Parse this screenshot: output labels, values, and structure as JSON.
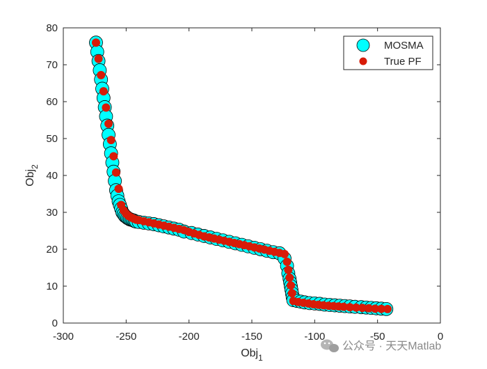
{
  "chart_data": {
    "type": "scatter",
    "xlabel": "Obj",
    "xlabel_sub": "1",
    "ylabel": "Obj",
    "ylabel_sub": "2",
    "xlim": [
      -300,
      0
    ],
    "ylim": [
      0,
      80
    ],
    "xticks": [
      -300,
      -250,
      -200,
      -150,
      -100,
      -50,
      0
    ],
    "yticks": [
      0,
      10,
      20,
      30,
      40,
      50,
      60,
      70,
      80
    ],
    "grid": false,
    "legend_position": "top-right",
    "series": [
      {
        "name": "MOSMA",
        "color": "#00ffff",
        "marker": "circle-large",
        "x": [
          -274,
          -273,
          -272,
          -271,
          -270,
          -269,
          -268,
          -267,
          -266,
          -265,
          -264,
          -263,
          -262,
          -261,
          -260,
          -259,
          -258,
          -257,
          -256,
          -255,
          -254,
          -253,
          -252,
          -251,
          -250,
          -249,
          -248,
          -247,
          -246,
          -245,
          -244,
          -243,
          -242,
          -240,
          -236,
          -232,
          -228,
          -224,
          -220,
          -216,
          -212,
          -208,
          -204,
          -198,
          -193,
          -188,
          -183,
          -178,
          -173,
          -168,
          -163,
          -158,
          -153,
          -148,
          -143,
          -138,
          -133,
          -128,
          -124,
          -122,
          -121,
          -120,
          -119.5,
          -119,
          -118.5,
          -118,
          -117.5,
          -117,
          -114,
          -111,
          -108,
          -104,
          -100,
          -96,
          -92,
          -88,
          -84,
          -80,
          -76,
          -72,
          -68,
          -63,
          -59,
          -55,
          -51,
          -47,
          -43
        ],
        "y": [
          76,
          73.5,
          71,
          68.5,
          66,
          63.5,
          61,
          58.5,
          56,
          53.5,
          51,
          48.5,
          46,
          43.5,
          41,
          38.5,
          36,
          34.5,
          33,
          32,
          31,
          30,
          29.5,
          29,
          28.8,
          28.5,
          28.3,
          28.1,
          28,
          27.9,
          27.8,
          27.6,
          27.5,
          27.4,
          27.2,
          27,
          26.8,
          26.5,
          26.2,
          25.9,
          25.6,
          25.3,
          24.8,
          24.4,
          24,
          23.6,
          23.2,
          22.8,
          22.4,
          22,
          21.6,
          21.2,
          20.8,
          20.4,
          20,
          19.6,
          19.2,
          18.9,
          17.5,
          15.5,
          13.5,
          12,
          11,
          10,
          9,
          8,
          7,
          6.2,
          6,
          5.8,
          5.6,
          5.4,
          5.3,
          5.2,
          5,
          4.9,
          4.8,
          4.7,
          4.6,
          4.5,
          4.4,
          4.3,
          4.2,
          4.1,
          4,
          3.9,
          3.8
        ]
      },
      {
        "name": "True PF",
        "color": "#d81b08",
        "marker": "dot",
        "x": [
          -274,
          -272,
          -270,
          -268,
          -266,
          -264,
          -262,
          -260,
          -258,
          -256,
          -254,
          -252,
          -250,
          -248,
          -246,
          -244,
          -242,
          -240,
          -236,
          -232,
          -228,
          -224,
          -220,
          -216,
          -212,
          -208,
          -204,
          -200,
          -196,
          -192,
          -188,
          -184,
          -180,
          -176,
          -172,
          -168,
          -164,
          -160,
          -156,
          -152,
          -148,
          -144,
          -140,
          -136,
          -132,
          -128,
          -124,
          -122,
          -121,
          -120,
          -119,
          -118,
          -117,
          -113,
          -109,
          -105,
          -101,
          -97,
          -93,
          -89,
          -85,
          -81,
          -77,
          -72,
          -67,
          -62,
          -57,
          -52,
          -47,
          -42
        ],
        "y": [
          76,
          71.6,
          67.2,
          62.8,
          58.4,
          54,
          49.6,
          45.2,
          40.8,
          36.4,
          32,
          30.5,
          29.6,
          29,
          28.6,
          28.3,
          28,
          27.9,
          27.6,
          27.3,
          27,
          26.7,
          26.4,
          26.1,
          25.8,
          25.5,
          25.2,
          24.7,
          24.3,
          23.9,
          23.5,
          23.2,
          22.9,
          22.6,
          22.3,
          22,
          21.7,
          21.4,
          21.1,
          20.8,
          20.5,
          20.2,
          19.9,
          19.6,
          19.3,
          19,
          18.7,
          16.6,
          14.4,
          12.3,
          10.2,
          8.1,
          6,
          5.7,
          5.5,
          5.3,
          5.1,
          4.95,
          4.8,
          4.7,
          4.6,
          4.5,
          4.4,
          4.3,
          4.2,
          4.1,
          4,
          3.9,
          3.85,
          3.8
        ]
      }
    ]
  },
  "watermark": {
    "text": "公众号 · 天天Matlab",
    "icon": "wechat-icon"
  }
}
